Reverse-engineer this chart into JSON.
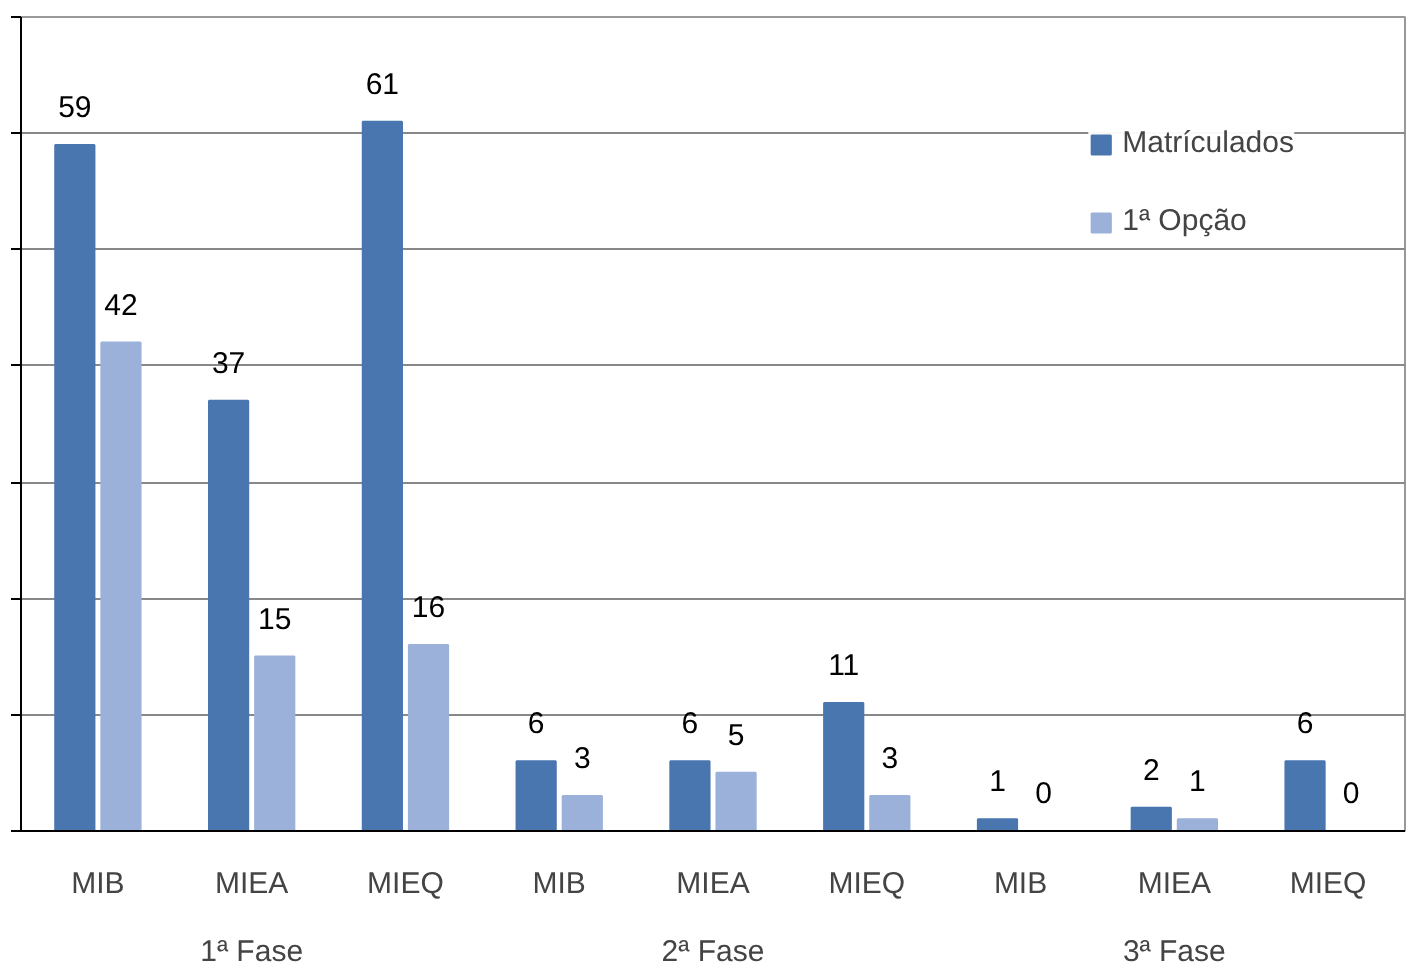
{
  "chart_data": {
    "type": "bar",
    "categories": [
      "MIB",
      "MIEA",
      "MIEQ",
      "MIB",
      "MIEA",
      "MIEQ",
      "MIB",
      "MIEA",
      "MIEQ"
    ],
    "series": [
      {
        "name": "Matrículados",
        "color": "#4a76b0",
        "values": [
          59,
          37,
          61,
          6,
          6,
          11,
          1,
          2,
          6
        ]
      },
      {
        "name": "1ª Opção",
        "color": "#9bb1da",
        "values": [
          42,
          15,
          16,
          3,
          5,
          3,
          0,
          1,
          0
        ]
      }
    ],
    "annotations": [
      "1ª Fase",
      "2ª Fase",
      "3ª Fase"
    ],
    "ylim": [
      0,
      70
    ],
    "yticks": [
      0,
      10,
      20,
      30,
      40,
      50,
      60,
      70
    ],
    "tick_labels": "x",
    "grid": "y",
    "legend": "top right",
    "data_labels": true
  }
}
